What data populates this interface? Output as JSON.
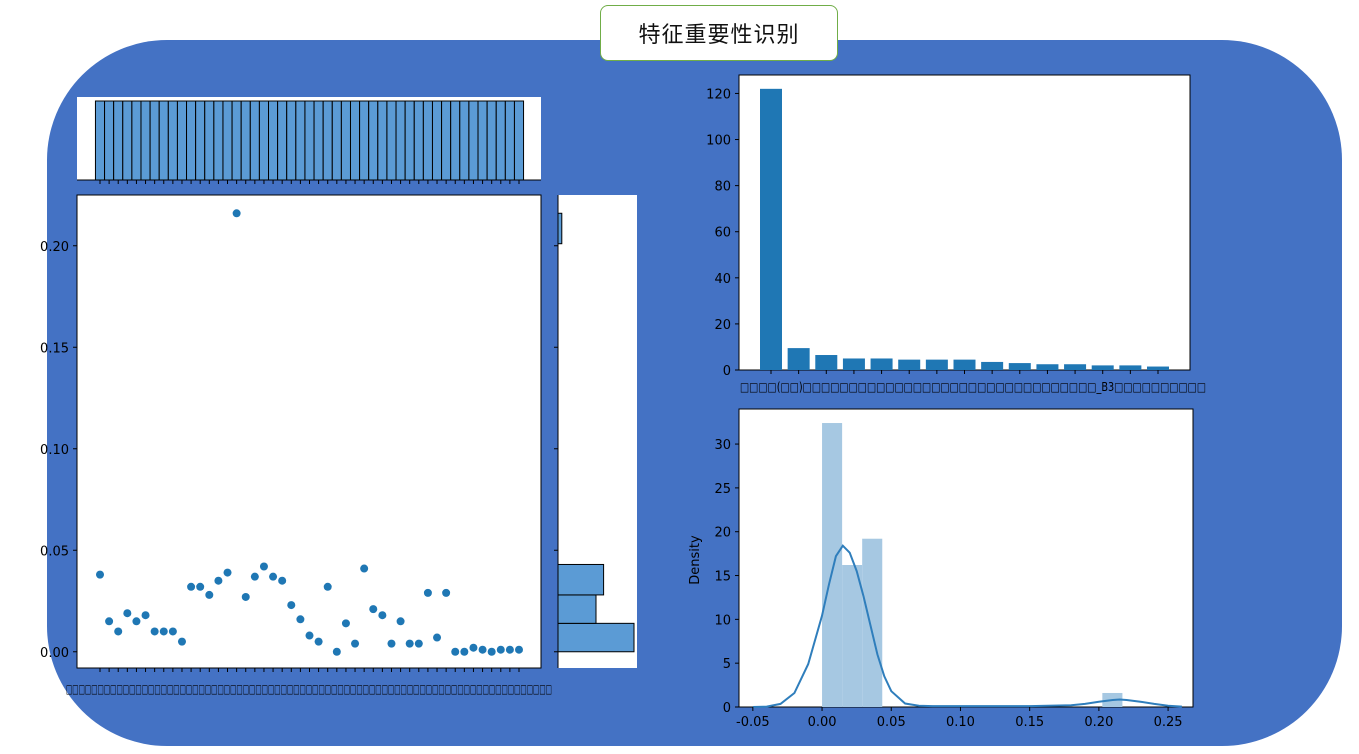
{
  "page": {
    "title": "特征重要性识别",
    "background_color": "#4472c4",
    "title_border_color": "#70ad47"
  },
  "chart_data": [
    {
      "type": "scatter",
      "panel": "joint-scatter",
      "color": "#1f77b4",
      "y": [
        0.038,
        0.015,
        0.01,
        0.019,
        0.015,
        0.018,
        0.01,
        0.01,
        0.01,
        0.005,
        0.032,
        0.032,
        0.028,
        0.035,
        0.039,
        0.216,
        0.027,
        0.037,
        0.042,
        0.037,
        0.035,
        0.023,
        0.016,
        0.008,
        0.005,
        0.032,
        0.0,
        0.014,
        0.004,
        0.041,
        0.021,
        0.018,
        0.004,
        0.015,
        0.004,
        0.004,
        0.029,
        0.007,
        0.029,
        0.0,
        0.0,
        0.002,
        0.001,
        0.0,
        0.001,
        0.001,
        0.001
      ],
      "ylim": [
        -0.008,
        0.225
      ],
      "yticks": [
        "0.00",
        "0.05",
        "0.10",
        "0.15",
        "0.20"
      ]
    },
    {
      "type": "bar",
      "panel": "joint-marginal-right",
      "orientation": "horizontal",
      "color": "#5b9bd5",
      "bins": [
        {
          "from": 0.0,
          "to": 0.014,
          "count": 20
        },
        {
          "from": 0.014,
          "to": 0.028,
          "count": 10
        },
        {
          "from": 0.028,
          "to": 0.043,
          "count": 12
        },
        {
          "from": 0.201,
          "to": 0.216,
          "count": 1
        }
      ]
    },
    {
      "type": "bar",
      "panel": "top-right",
      "color": "#1f77b4",
      "values": [
        122,
        9.5,
        6.5,
        5,
        5,
        4.5,
        4.5,
        4.5,
        3.5,
        3,
        2.5,
        2.5,
        2,
        2,
        1.5
      ],
      "ylim": [
        0,
        128
      ],
      "yticks": [
        "0",
        "20",
        "40",
        "60",
        "80",
        "100",
        "120"
      ],
      "xlabel_text": "□□□□(□□)□□□□□□□□□□□□□□□□□□□□□□□□□□□□□□□□_B3□□□□□□□□□□"
    },
    {
      "type": "bar",
      "panel": "bottom-right",
      "ylabel": "Density",
      "hist_color": "#a6c8e2",
      "kde_color": "#2f7ebc",
      "hist": [
        {
          "from": 0.0,
          "to": 0.0145,
          "density": 32.4
        },
        {
          "from": 0.0145,
          "to": 0.029,
          "density": 16.2
        },
        {
          "from": 0.029,
          "to": 0.0435,
          "density": 19.2
        },
        {
          "from": 0.2025,
          "to": 0.217,
          "density": 1.6
        }
      ],
      "kde": [
        [
          -0.05,
          0.0
        ],
        [
          -0.04,
          0.05
        ],
        [
          -0.03,
          0.35
        ],
        [
          -0.02,
          1.6
        ],
        [
          -0.01,
          4.9
        ],
        [
          0.0,
          10.4
        ],
        [
          0.005,
          14.0
        ],
        [
          0.01,
          17.2
        ],
        [
          0.015,
          18.4
        ],
        [
          0.02,
          17.6
        ],
        [
          0.025,
          15.5
        ],
        [
          0.03,
          12.6
        ],
        [
          0.035,
          9.3
        ],
        [
          0.04,
          6.0
        ],
        [
          0.045,
          3.5
        ],
        [
          0.05,
          1.8
        ],
        [
          0.06,
          0.4
        ],
        [
          0.07,
          0.15
        ],
        [
          0.08,
          0.1
        ],
        [
          0.1,
          0.1
        ],
        [
          0.15,
          0.1
        ],
        [
          0.18,
          0.2
        ],
        [
          0.19,
          0.35
        ],
        [
          0.2,
          0.6
        ],
        [
          0.21,
          0.8
        ],
        [
          0.215,
          0.85
        ],
        [
          0.22,
          0.8
        ],
        [
          0.23,
          0.6
        ],
        [
          0.24,
          0.35
        ],
        [
          0.25,
          0.15
        ],
        [
          0.26,
          0.05
        ]
      ],
      "xlim": [
        -0.06,
        0.268
      ],
      "ylim": [
        0,
        34
      ],
      "xticks": [
        "-0.05",
        "0.00",
        "0.05",
        "0.10",
        "0.15",
        "0.20",
        "0.25"
      ],
      "yticks": [
        "0",
        "5",
        "10",
        "15",
        "20",
        "25",
        "30"
      ]
    }
  ],
  "joint_xlabel_text": "□□□□□□□□□□□□□□□□□□□□□□□□□□□□□□□□□□□□□□□□□□□□□□□□□□□□□□□□□□□□□□□□□□□□□□□□□□□□□"
}
